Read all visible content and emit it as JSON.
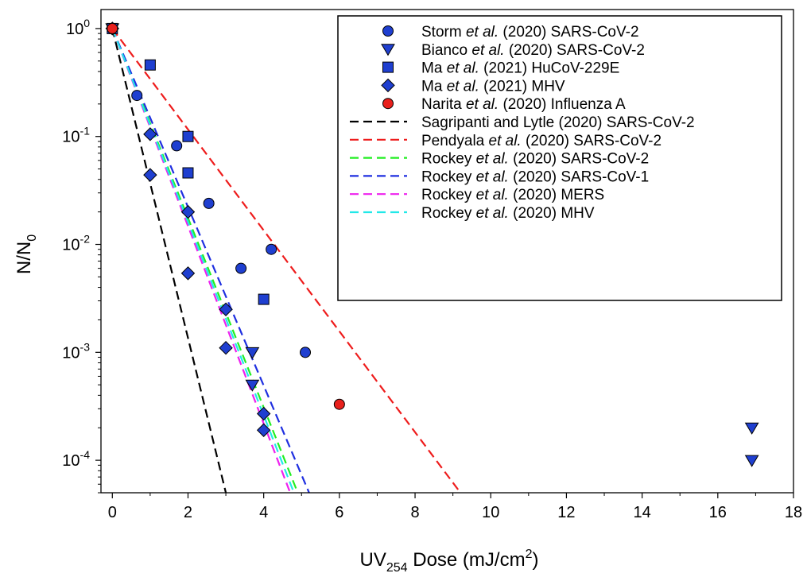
{
  "chart_data": {
    "type": "scatter",
    "xlabel": {
      "main": "UV",
      "sub": "254",
      "rest": " Dose (mJ/cm",
      "sup": "2",
      "close": ")"
    },
    "ylabel": {
      "main": "N/N",
      "sub": "0"
    },
    "xlim": [
      -0.3,
      18
    ],
    "ylim": [
      5e-05,
      1.5
    ],
    "yscale": "log",
    "grid": false,
    "legend_position": "top-right",
    "x_ticks": [
      0,
      2,
      4,
      6,
      8,
      10,
      12,
      14,
      16,
      18
    ],
    "x_tick_labels": [
      "0",
      "2",
      "4",
      "6",
      "8",
      "10",
      "12",
      "14",
      "16",
      "18"
    ],
    "y_ticks": [
      {
        "value": 1,
        "base": "10",
        "exp": "0"
      },
      {
        "value": 0.1,
        "base": "10",
        "exp": "-1"
      },
      {
        "value": 0.01,
        "base": "10",
        "exp": "-2"
      },
      {
        "value": 0.001,
        "base": "10",
        "exp": "-3"
      },
      {
        "value": 0.0001,
        "base": "10",
        "exp": "-4"
      }
    ],
    "scatter_series": [
      {
        "legend": {
          "pre": "Storm ",
          "em": "et al.",
          "post": " (2020) SARS-CoV-2"
        },
        "marker": "circle",
        "color": "#1f3fd0",
        "points": [
          [
            0,
            1
          ],
          [
            0.65,
            0.24
          ],
          [
            1.7,
            0.082
          ],
          [
            2.55,
            0.024
          ],
          [
            3.4,
            0.006
          ],
          [
            4.2,
            0.009
          ],
          [
            5.1,
            0.001
          ]
        ]
      },
      {
        "legend": {
          "pre": "Bianco ",
          "em": "et al.",
          "post": " (2020) SARS-CoV-2"
        },
        "marker": "triangle-down",
        "color": "#1f3fd0",
        "points": [
          [
            0,
            1
          ],
          [
            3.7,
            0.001
          ],
          [
            3.7,
            0.0005
          ],
          [
            16.9,
            0.0002
          ],
          [
            16.9,
            0.0001
          ]
        ]
      },
      {
        "legend": {
          "pre": "Ma ",
          "em": "et al.",
          "post": " (2021) HuCoV-229E"
        },
        "marker": "square",
        "color": "#1f3fd0",
        "points": [
          [
            0,
            1
          ],
          [
            1,
            0.46
          ],
          [
            2,
            0.1
          ],
          [
            2,
            0.046
          ],
          [
            4,
            0.0031
          ]
        ]
      },
      {
        "legend": {
          "pre": "Ma ",
          "em": "et al.",
          "post": " (2021) MHV"
        },
        "marker": "diamond",
        "color": "#1f3fd0",
        "points": [
          [
            0,
            1
          ],
          [
            1,
            0.105
          ],
          [
            1,
            0.044
          ],
          [
            2,
            0.02
          ],
          [
            2,
            0.0054
          ],
          [
            3,
            0.0025
          ],
          [
            3,
            0.0011
          ],
          [
            4,
            0.00027
          ],
          [
            4,
            0.00019
          ]
        ]
      },
      {
        "legend": {
          "pre": "Narita ",
          "em": "et al.",
          "post": " (2020) Influenza A"
        },
        "marker": "circle",
        "color": "#e8201c",
        "points": [
          [
            0,
            1
          ],
          [
            6,
            0.00033
          ]
        ]
      }
    ],
    "line_series": [
      {
        "legend": {
          "pre": "Sagripanti and Lytle (2020) SARS-CoV-2",
          "em": "",
          "post": ""
        },
        "color": "#000000",
        "x_end": 3.0
      },
      {
        "legend": {
          "pre": "Pendyala ",
          "em": "et al.",
          "post": " (2020) SARS-CoV-2"
        },
        "color": "#ee1c1c",
        "x_end": 9.2
      },
      {
        "legend": {
          "pre": "Rockey ",
          "em": "et al.",
          "post": " (2020) SARS-CoV-2"
        },
        "color": "#22ee22",
        "x_end": 4.9
      },
      {
        "legend": {
          "pre": "Rockey ",
          "em": "et al.",
          "post": " (2020) SARS-CoV-1"
        },
        "color": "#1f2fe0",
        "x_end": 5.2
      },
      {
        "legend": {
          "pre": "Rockey ",
          "em": "et al.",
          "post": " (2020) MERS"
        },
        "color": "#ee22ee",
        "x_end": 4.7
      },
      {
        "legend": {
          "pre": "Rockey ",
          "em": "et al.",
          "post": " (2020) MHV"
        },
        "color": "#22e8e8",
        "x_end": 4.8
      }
    ]
  }
}
